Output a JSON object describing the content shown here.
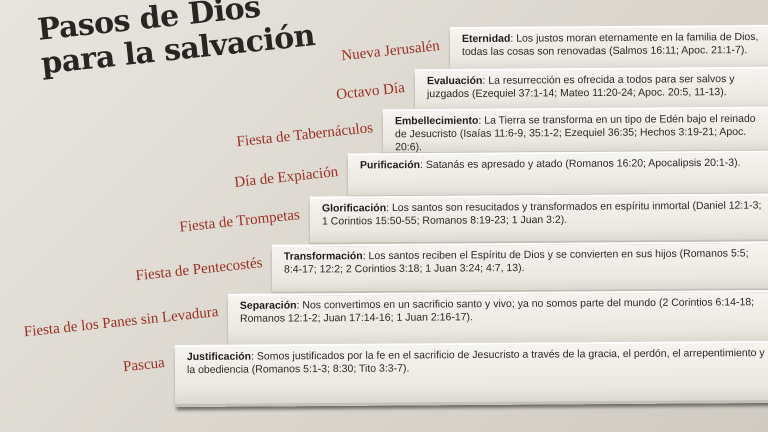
{
  "title": [
    "Pasos de Dios",
    "para la salvación"
  ],
  "steps": [
    {
      "feast": "Nueva Jerusalén",
      "name": "Eternidad",
      "text": ": Los justos moran eternamente en la familia de Dios, todas las cosas son renovadas (Salmos 16:11; Apoc. 21:1-7)."
    },
    {
      "feast": "Octavo Día",
      "name": "Evaluación",
      "text": ": La resurrección es ofrecida a todos para ser salvos y juzgados (Ezequiel 37:1-14; Mateo 11:20-24; Apoc. 20:5, 11-13)."
    },
    {
      "feast": "Fiesta de Tabernáculos",
      "name": "Embellecimiento",
      "text": ": La Tierra se transforma en un tipo de Edén bajo el reinado de Jesucristo (Isaías 11:6-9, 35:1-2; Ezequiel 36:35; Hechos 3:19-21; Apoc. 20:6)."
    },
    {
      "feast": "Día de Expiación",
      "name": "Purificación",
      "text": ": Satanás es apresado y atado (Romanos 16:20; Apocalipsis 20:1-3)."
    },
    {
      "feast": "Fiesta de Trompetas",
      "name": "Glorificación",
      "text": ": Los santos son resucitados y transformados en espíritu inmortal (Daniel 12:1-3; 1 Corintios 15:50-55; Romanos 8:19-23; 1 Juan 3:2)."
    },
    {
      "feast": "Fiesta de Pentecostés",
      "name": "Transformación",
      "text": ": Los santos reciben el Espíritu de Dios y se convierten en sus hijos (Romanos 5:5; 8:4-17; 12:2; 2 Corintios 3:18; 1 Juan 3:24; 4:7, 13)."
    },
    {
      "feast": "Fiesta de los Panes sin Levadura",
      "name": "Separación",
      "text": ": Nos convertimos en un sacrificio santo y vivo; ya no somos parte del mundo (2 Corintios 6:14-18; Romanos 12:1-2; Juan 17:14-16; 1 Juan 2:16-17)."
    },
    {
      "feast": "Pascua",
      "name": "Justificación",
      "text": ": Somos justificados por la fe en el sacrificio de Jesucristo a través de la gracia, el perdón, el arrepentimiento y la obediencia (Romanos 5:1-3; 8:30; Tito 3:3-7)."
    }
  ]
}
